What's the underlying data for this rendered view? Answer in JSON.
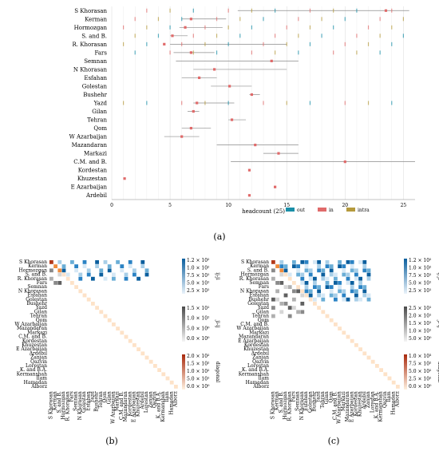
{
  "panels": {
    "a": {
      "caption": "(a)",
      "chart_data": {
        "type": "scatter",
        "categories": [
          "S Khorasan",
          "Kerman",
          "Hormozgan",
          "S. and B.",
          "R. Khorasan",
          "Fars",
          "Semnan",
          "N Khorasan",
          "Esfahan",
          "Golestan",
          "Bushehr",
          "Yazd",
          "Gilan",
          "Tehran",
          "Qom",
          "W Azarbaijan",
          "Mazandaran",
          "Markazi",
          "C.M. and B.",
          "Kordestan",
          "Khuzestan",
          "E Azarbaijan",
          "Ardebil"
        ],
        "xlabel": "headcount (25)",
        "xticks": [
          0,
          5,
          10,
          15,
          20,
          25
        ],
        "xlim": [
          0,
          26
        ],
        "legend": [
          {
            "name": "out",
            "color": "#1a8fa8"
          },
          {
            "name": "in",
            "color": "#e06a6a"
          },
          {
            "name": "intra",
            "color": "#b59a3c"
          }
        ],
        "legend_position": "bottom-right",
        "series": [
          {
            "name": "in",
            "x": [
              23.5,
              6.8,
              6.3,
              5.2,
              4.5,
              6.8,
              13.7,
              8.8,
              7.5,
              10.1,
              12.0,
              7.3,
              7.0,
              10.3,
              6.8,
              6.0,
              12.3,
              14.3,
              20.0,
              11.8,
              1.1,
              14.0,
              11.8
            ]
          },
          {
            "name": "range_low",
            "x": [
              10.8,
              6.0,
              5.8,
              5.0,
              5.0,
              5.3,
              5.5,
              7.0,
              6.0,
              8.5,
              11.8,
              7.0,
              6.5,
              10.0,
              6.0,
              4.5,
              9.0,
              13.0,
              10.2,
              11.8,
              1.1,
              14.0,
              11.8
            ]
          },
          {
            "name": "range_high",
            "x": [
              25.5,
              9.8,
              9.5,
              6.5,
              15.0,
              8.8,
              16.0,
              15.0,
              9.0,
              12.0,
              12.7,
              10.5,
              7.5,
              11.5,
              8.5,
              7.5,
              16.0,
              16.0,
              26.0,
              11.8,
              1.1,
              14.0,
              11.8
            ]
          }
        ]
      }
    },
    "b": {
      "caption": "(b)",
      "chart_data": {
        "type": "heatmap",
        "rows": [
          "S Khorasan",
          "Kerman",
          "Hormozgan",
          "S. and B.",
          "R. Khorasan",
          "Fars",
          "Semnan",
          "N Khorasan",
          "Esfahan",
          "Golestan",
          "Bushehr",
          "Yazd",
          "Gilan",
          "Tehran",
          "Qom",
          "W Azarbaijan",
          "Mazandaran",
          "Markazi",
          "C.M. and B.",
          "Kordestan",
          "Khuzestan",
          "E Azarbaijan",
          "Ardebil",
          "Zanjan",
          "Qazvin",
          "Lorestan",
          "K. and B.A.",
          "Kermanshah",
          "Ilam",
          "Hamadan",
          "Alborz"
        ],
        "columns": [
          "S Khorasan",
          "Kerman",
          "S. and B.",
          "Hormozgan",
          "R. Khorasan",
          "Fars",
          "Semnan",
          "N Khorasan",
          "Golestan",
          "Esfahan",
          "Yazd",
          "Bushehr",
          "Tehran",
          "Qom",
          "Gilan",
          "W Azarbaijan",
          "Markazi",
          "C.M. and B.",
          "Mazandaran",
          "Kordestan",
          "E Azarbaijan",
          "Khuzestan",
          "Ardebil",
          "Lorestan",
          "Zanjan",
          "Qazvin",
          "K. and B.A.",
          "Kermanshah",
          "Ilam",
          "Hamadan",
          "Alborz"
        ],
        "colorbars": [
          {
            "label": "ij-ji",
            "ticks": [
              "1.2 × 10²",
              "1.0 × 10²",
              "7.5 × 10¹",
              "5.0 × 10¹",
              "2.5 × 10¹"
            ]
          },
          {
            "label": "ji-ij",
            "ticks": [
              "1.5 × 10¹",
              "1.0 × 10¹",
              "5.0 × 10⁰",
              "0.0 × 10⁰"
            ]
          },
          {
            "label": "diagonal",
            "ticks": [
              "2.0 × 10²",
              "1.5 × 10²",
              "1.0 × 10²",
              "5.0 × 10¹",
              "0.0 × 10⁰"
            ]
          }
        ]
      }
    },
    "c": {
      "caption": "(c)",
      "chart_data": {
        "type": "heatmap",
        "rows": [
          "S Khorasan",
          "Kerman",
          "S. and B.",
          "Hormozgan",
          "R. Khorasan",
          "Semnan",
          "Fars",
          "N Khorasan",
          "Esfahan",
          "Bushehr",
          "Golestan",
          "Yazd",
          "Gilan",
          "Tehran",
          "Qom",
          "C.M. and B.",
          "W Azarbaijan",
          "Markazi",
          "Mazandaran",
          "E Azarbaijan",
          "Kordestan",
          "Khuzestan",
          "Ardebil",
          "Zanjan",
          "Qazvin",
          "Lorestan",
          "K. and B.A.",
          "Kermanshah",
          "Ilam",
          "Hamadan",
          "Alborz"
        ],
        "columns": [
          "S Khorasan",
          "Kerman",
          "S. and B.",
          "Hormozgan",
          "R. Khorasan",
          "Fars",
          "Semnan",
          "N Khorasan",
          "Esfahan",
          "Golestan",
          "Bushehr",
          "Yazd",
          "Tehran",
          "Gilan",
          "Qom",
          "C.M. and B.",
          "W Azarbaijan",
          "Markazi",
          "Mazandaran",
          "E Azarbaijan",
          "Kordestan",
          "Khuzestan",
          "Ardebil",
          "Zanjan",
          "Lorestan",
          "K. and B.A.",
          "Kermanshah",
          "Qazvin",
          "Ilam",
          "Hamadan",
          "Alborz"
        ],
        "colorbars": [
          {
            "label": "ij-ji",
            "ticks": [
              "1.2 × 10²",
              "1.0 × 10²",
              "7.5 × 10¹",
              "5.0 × 10¹",
              "2.5 × 10¹"
            ]
          },
          {
            "label": "ji-ij",
            "ticks": [
              "2.5 × 10¹",
              "2.0 × 10¹",
              "1.5 × 10¹",
              "1.0 × 10¹",
              "5.0 × 10⁰"
            ]
          },
          {
            "label": "diagonal",
            "ticks": [
              "1.0 × 10³",
              "7.5 × 10²",
              "5.0 × 10²",
              "2.5 × 10²",
              "0.0 × 10⁰"
            ]
          }
        ]
      }
    }
  }
}
